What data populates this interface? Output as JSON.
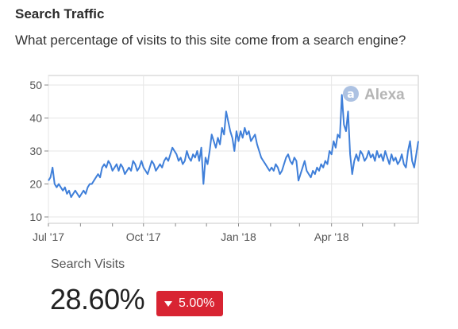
{
  "header": {
    "title": "Search Traffic",
    "subtitle": "What percentage of visits to this site come from a search engine?"
  },
  "watermark": {
    "icon": "alexa-logo-icon",
    "text": "Alexa"
  },
  "metric": {
    "label": "Search Visits",
    "value": "28.60%",
    "change": "5.00%",
    "change_direction": "down",
    "change_color": "#d82432"
  },
  "chart_data": {
    "type": "line",
    "title": "",
    "xlabel": "",
    "ylabel": "",
    "ylim": [
      10,
      50
    ],
    "yticks": [
      10,
      20,
      30,
      40,
      50
    ],
    "xlim": [
      "2017-07-01",
      "2018-06-24"
    ],
    "xticks": [
      {
        "date": "2017-07-01",
        "label": "Jul '17"
      },
      {
        "date": "2017-10-01",
        "label": "Oct '17"
      },
      {
        "date": "2018-01-01",
        "label": "Jan '18"
      },
      {
        "date": "2018-04-01",
        "label": "Apr '18"
      }
    ],
    "grid": true,
    "line_color": "#3f7fd9",
    "series": [
      {
        "name": "",
        "points": [
          [
            "2017-07-01",
            21
          ],
          [
            "2017-07-03",
            22
          ],
          [
            "2017-07-05",
            25
          ],
          [
            "2017-07-07",
            20
          ],
          [
            "2017-07-09",
            19
          ],
          [
            "2017-07-11",
            20
          ],
          [
            "2017-07-13",
            19
          ],
          [
            "2017-07-15",
            18
          ],
          [
            "2017-07-17",
            19
          ],
          [
            "2017-07-19",
            17
          ],
          [
            "2017-07-21",
            18
          ],
          [
            "2017-07-23",
            16
          ],
          [
            "2017-07-25",
            17
          ],
          [
            "2017-07-27",
            18
          ],
          [
            "2017-07-29",
            17
          ],
          [
            "2017-07-31",
            16
          ],
          [
            "2017-08-02",
            17
          ],
          [
            "2017-08-04",
            18
          ],
          [
            "2017-08-06",
            17
          ],
          [
            "2017-08-08",
            19
          ],
          [
            "2017-08-10",
            20
          ],
          [
            "2017-08-12",
            20
          ],
          [
            "2017-08-14",
            21
          ],
          [
            "2017-08-16",
            22
          ],
          [
            "2017-08-18",
            23
          ],
          [
            "2017-08-20",
            22
          ],
          [
            "2017-08-22",
            25
          ],
          [
            "2017-08-24",
            26
          ],
          [
            "2017-08-26",
            25
          ],
          [
            "2017-08-28",
            27
          ],
          [
            "2017-08-30",
            26
          ],
          [
            "2017-09-01",
            24
          ],
          [
            "2017-09-03",
            25
          ],
          [
            "2017-09-05",
            26
          ],
          [
            "2017-09-07",
            24
          ],
          [
            "2017-09-09",
            26
          ],
          [
            "2017-09-11",
            25
          ],
          [
            "2017-09-13",
            23
          ],
          [
            "2017-09-15",
            24
          ],
          [
            "2017-09-17",
            25
          ],
          [
            "2017-09-19",
            24
          ],
          [
            "2017-09-21",
            27
          ],
          [
            "2017-09-23",
            26
          ],
          [
            "2017-09-25",
            24
          ],
          [
            "2017-09-27",
            25
          ],
          [
            "2017-09-29",
            27
          ],
          [
            "2017-10-01",
            25
          ],
          [
            "2017-10-03",
            24
          ],
          [
            "2017-10-05",
            23
          ],
          [
            "2017-10-07",
            25
          ],
          [
            "2017-10-09",
            27
          ],
          [
            "2017-10-11",
            26
          ],
          [
            "2017-10-13",
            24
          ],
          [
            "2017-10-15",
            25
          ],
          [
            "2017-10-17",
            26
          ],
          [
            "2017-10-19",
            25
          ],
          [
            "2017-10-21",
            27
          ],
          [
            "2017-10-23",
            28
          ],
          [
            "2017-10-25",
            27
          ],
          [
            "2017-10-27",
            29
          ],
          [
            "2017-10-29",
            31
          ],
          [
            "2017-10-31",
            30
          ],
          [
            "2017-11-02",
            29
          ],
          [
            "2017-11-04",
            27
          ],
          [
            "2017-11-06",
            28
          ],
          [
            "2017-11-08",
            26
          ],
          [
            "2017-11-10",
            27
          ],
          [
            "2017-11-12",
            30
          ],
          [
            "2017-11-14",
            28
          ],
          [
            "2017-11-16",
            27
          ],
          [
            "2017-11-18",
            29
          ],
          [
            "2017-11-20",
            28
          ],
          [
            "2017-11-22",
            30
          ],
          [
            "2017-11-24",
            27
          ],
          [
            "2017-11-26",
            31
          ],
          [
            "2017-11-28",
            20
          ],
          [
            "2017-11-30",
            28
          ],
          [
            "2017-12-02",
            26
          ],
          [
            "2017-12-04",
            30
          ],
          [
            "2017-12-06",
            35
          ],
          [
            "2017-12-08",
            33
          ],
          [
            "2017-12-10",
            31
          ],
          [
            "2017-12-12",
            34
          ],
          [
            "2017-12-14",
            32
          ],
          [
            "2017-12-16",
            37
          ],
          [
            "2017-12-18",
            35
          ],
          [
            "2017-12-20",
            42
          ],
          [
            "2017-12-22",
            39
          ],
          [
            "2017-12-24",
            36
          ],
          [
            "2017-12-26",
            34
          ],
          [
            "2017-12-28",
            30
          ],
          [
            "2017-12-30",
            36
          ],
          [
            "2018-01-01",
            33
          ],
          [
            "2018-01-03",
            36
          ],
          [
            "2018-01-05",
            34
          ],
          [
            "2018-01-07",
            37
          ],
          [
            "2018-01-09",
            35
          ],
          [
            "2018-01-11",
            36
          ],
          [
            "2018-01-13",
            33
          ],
          [
            "2018-01-15",
            34
          ],
          [
            "2018-01-17",
            35
          ],
          [
            "2018-01-19",
            32
          ],
          [
            "2018-01-21",
            30
          ],
          [
            "2018-01-23",
            28
          ],
          [
            "2018-01-25",
            27
          ],
          [
            "2018-01-27",
            26
          ],
          [
            "2018-01-29",
            25
          ],
          [
            "2018-01-31",
            24
          ],
          [
            "2018-02-02",
            25
          ],
          [
            "2018-02-04",
            24
          ],
          [
            "2018-02-06",
            26
          ],
          [
            "2018-02-08",
            25
          ],
          [
            "2018-02-10",
            23
          ],
          [
            "2018-02-12",
            24
          ],
          [
            "2018-02-14",
            26
          ],
          [
            "2018-02-16",
            28
          ],
          [
            "2018-02-18",
            29
          ],
          [
            "2018-02-20",
            27
          ],
          [
            "2018-02-22",
            26
          ],
          [
            "2018-02-24",
            28
          ],
          [
            "2018-02-26",
            27
          ],
          [
            "2018-02-28",
            21
          ],
          [
            "2018-03-02",
            23
          ],
          [
            "2018-03-04",
            25
          ],
          [
            "2018-03-06",
            27
          ],
          [
            "2018-03-08",
            24
          ],
          [
            "2018-03-10",
            23
          ],
          [
            "2018-03-12",
            22
          ],
          [
            "2018-03-14",
            24
          ],
          [
            "2018-03-16",
            23
          ],
          [
            "2018-03-18",
            25
          ],
          [
            "2018-03-20",
            24
          ],
          [
            "2018-03-22",
            26
          ],
          [
            "2018-03-24",
            25
          ],
          [
            "2018-03-26",
            27
          ],
          [
            "2018-03-28",
            26
          ],
          [
            "2018-03-30",
            30
          ],
          [
            "2018-04-01",
            29
          ],
          [
            "2018-04-03",
            33
          ],
          [
            "2018-04-05",
            31
          ],
          [
            "2018-04-07",
            35
          ],
          [
            "2018-04-09",
            34
          ],
          [
            "2018-04-11",
            47
          ],
          [
            "2018-04-13",
            38
          ],
          [
            "2018-04-15",
            36
          ],
          [
            "2018-04-17",
            42
          ],
          [
            "2018-04-19",
            29
          ],
          [
            "2018-04-21",
            23
          ],
          [
            "2018-04-23",
            27
          ],
          [
            "2018-04-25",
            29
          ],
          [
            "2018-04-27",
            27
          ],
          [
            "2018-04-29",
            30
          ],
          [
            "2018-05-01",
            29
          ],
          [
            "2018-05-03",
            27
          ],
          [
            "2018-05-05",
            28
          ],
          [
            "2018-05-07",
            30
          ],
          [
            "2018-05-09",
            28
          ],
          [
            "2018-05-11",
            29
          ],
          [
            "2018-05-13",
            27
          ],
          [
            "2018-05-15",
            30
          ],
          [
            "2018-05-17",
            28
          ],
          [
            "2018-05-19",
            29
          ],
          [
            "2018-05-21",
            27
          ],
          [
            "2018-05-23",
            30
          ],
          [
            "2018-05-25",
            28
          ],
          [
            "2018-05-27",
            26
          ],
          [
            "2018-05-29",
            29
          ],
          [
            "2018-05-31",
            27
          ],
          [
            "2018-06-02",
            28
          ],
          [
            "2018-06-04",
            26
          ],
          [
            "2018-06-06",
            27
          ],
          [
            "2018-06-08",
            29
          ],
          [
            "2018-06-10",
            26
          ],
          [
            "2018-06-12",
            25
          ],
          [
            "2018-06-14",
            30
          ],
          [
            "2018-06-16",
            33
          ],
          [
            "2018-06-18",
            27
          ],
          [
            "2018-06-20",
            25
          ],
          [
            "2018-06-22",
            29
          ],
          [
            "2018-06-24",
            33
          ]
        ]
      }
    ]
  }
}
